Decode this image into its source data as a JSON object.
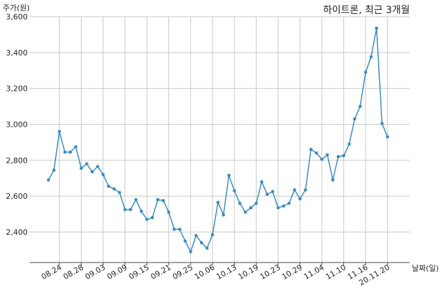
{
  "chart_data": {
    "type": "line",
    "title": "하이트론, 최근 3개월",
    "ylabel": "주가(원)",
    "xlabel": "날짜(일)",
    "ylim": [
      2230,
      3600
    ],
    "yticks": [
      2400,
      2600,
      2800,
      3000,
      3200,
      3400,
      3600
    ],
    "ytick_labels": [
      "2,400",
      "2,600",
      "2,800",
      "3,000",
      "3,200",
      "3,400",
      "3,600"
    ],
    "grid": true,
    "line_color": "#3a8bbf",
    "series": [
      {
        "values": [
          2690,
          2745,
          2960,
          2845,
          2845,
          2875,
          2755,
          2780,
          2735,
          2765,
          2720,
          2655,
          2640,
          2620,
          2525,
          2525,
          2580,
          2515,
          2470,
          2480,
          2580,
          2575,
          2510,
          2415,
          2415,
          2350,
          2290,
          2380,
          2340,
          2310,
          2385,
          2565,
          2495,
          2715,
          2630,
          2560,
          2510,
          2535,
          2560,
          2680,
          2610,
          2625,
          2535,
          2545,
          2560,
          2635,
          2585,
          2635,
          2860,
          2840,
          2805,
          2830,
          2690,
          2820,
          2825,
          2890,
          3030,
          3100,
          3290,
          3375,
          3535,
          3005,
          2930
        ]
      }
    ],
    "xticks": [
      {
        "label": "08.24",
        "index": 2
      },
      {
        "label": "08.28",
        "index": 6
      },
      {
        "label": "09.03",
        "index": 10
      },
      {
        "label": "09.09",
        "index": 14
      },
      {
        "label": "09.15",
        "index": 18
      },
      {
        "label": "09.21",
        "index": 22
      },
      {
        "label": "09.25",
        "index": 26
      },
      {
        "label": "10.06",
        "index": 30
      },
      {
        "label": "10.13",
        "index": 34
      },
      {
        "label": "10.19",
        "index": 38
      },
      {
        "label": "10.23",
        "index": 42
      },
      {
        "label": "10.29",
        "index": 46
      },
      {
        "label": "11.04",
        "index": 50
      },
      {
        "label": "11.10",
        "index": 54
      },
      {
        "label": "11.16",
        "index": 58
      },
      {
        "label": "20.11.20",
        "index": 62
      }
    ]
  }
}
